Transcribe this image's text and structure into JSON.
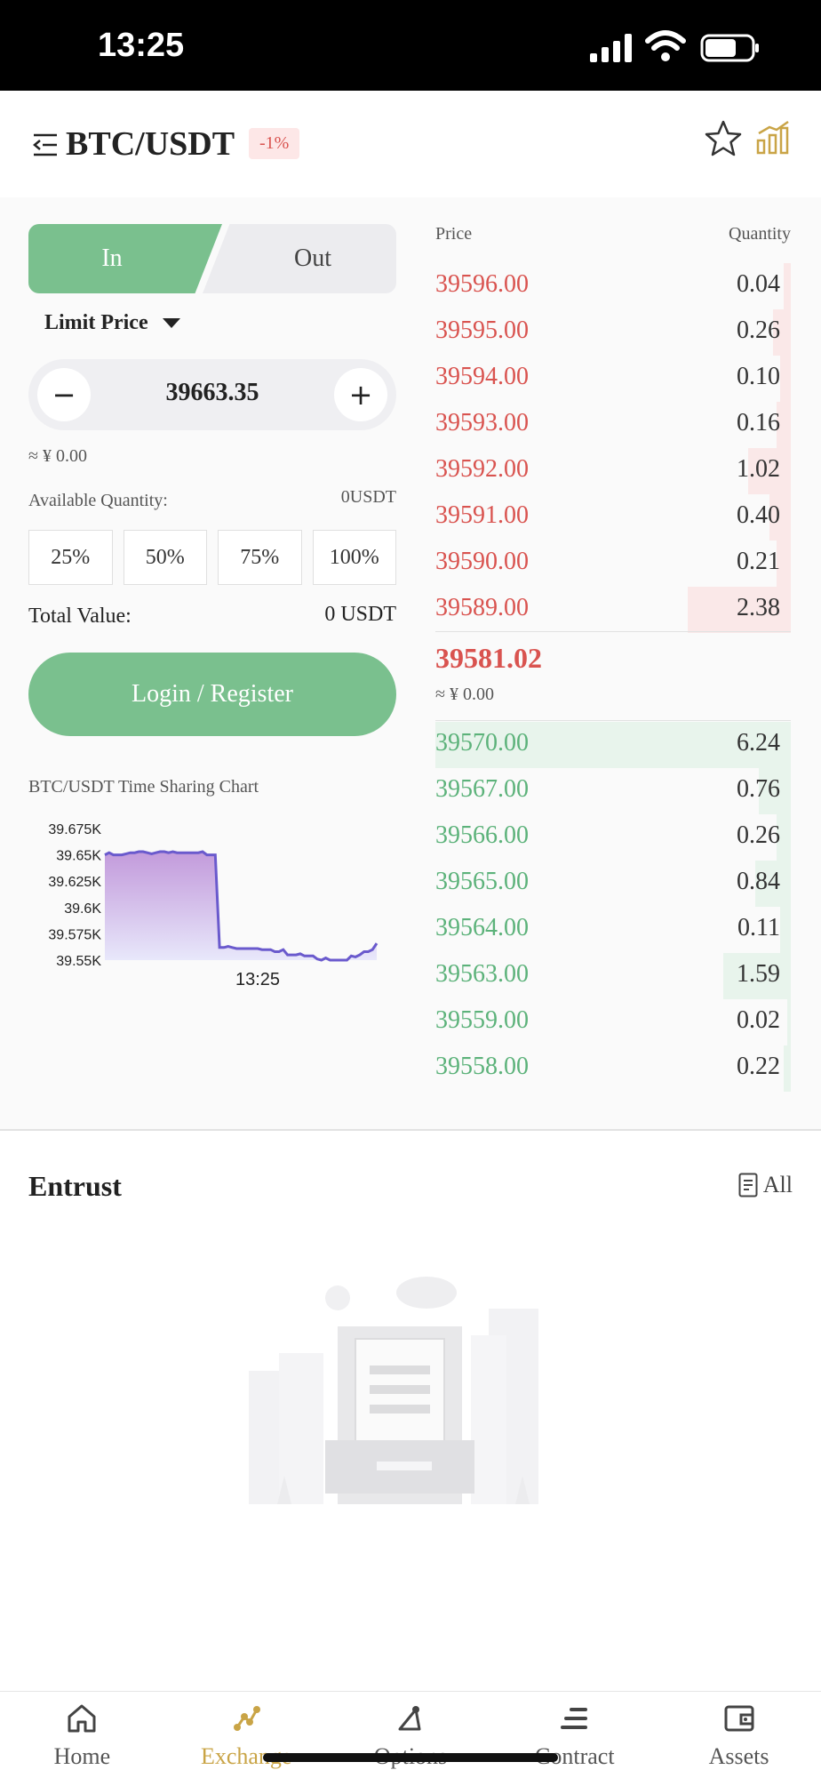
{
  "status_bar": {
    "time": "13:25"
  },
  "header": {
    "pair": "BTC/USDT",
    "change": "-1%"
  },
  "trade": {
    "side_in": "In",
    "side_out": "Out",
    "price_type": "Limit Price",
    "price_value": "39663.35",
    "minus": "−",
    "plus": "+",
    "approx_cny": "≈ ¥ 0.00",
    "available_label": "Available Quantity:",
    "available_value": "0USDT",
    "percents": [
      "25%",
      "50%",
      "75%",
      "100%"
    ],
    "total_label": "Total Value:",
    "total_value": "0 USDT",
    "login_label": "Login / Register"
  },
  "chart_data": {
    "type": "area",
    "title": "BTC/USDT Time Sharing Chart",
    "y_ticks": [
      "39.675K",
      "39.65K",
      "39.625K",
      "39.6K",
      "39.575K",
      "39.55K"
    ],
    "ylim": [
      39550,
      39675
    ],
    "x_tick": "13:25",
    "values": [
      39650,
      39652,
      39650,
      39650,
      39650,
      39651,
      39652,
      39652,
      39653,
      39653,
      39652,
      39651,
      39652,
      39653,
      39653,
      39652,
      39653,
      39652,
      39652,
      39652,
      39652,
      39652,
      39652,
      39653,
      39650,
      39650,
      39650,
      39562,
      39562,
      39563,
      39562,
      39561,
      39561,
      39561,
      39561,
      39561,
      39561,
      39560,
      39560,
      39560,
      39558,
      39558,
      39560,
      39555,
      39555,
      39555,
      39556,
      39554,
      39554,
      39554,
      39551,
      39550,
      39552,
      39550,
      39550,
      39550,
      39550,
      39550,
      39554,
      39553,
      39555,
      39558,
      39558,
      39560,
      39566
    ],
    "line_color": "#6a5acd"
  },
  "order_book": {
    "price_header": "Price",
    "quantity_header": "Quantity",
    "asks": [
      {
        "price": "39596.00",
        "qty": "0.04",
        "depth": 0.02
      },
      {
        "price": "39595.00",
        "qty": "0.26",
        "depth": 0.05
      },
      {
        "price": "39594.00",
        "qty": "0.10",
        "depth": 0.03
      },
      {
        "price": "39593.00",
        "qty": "0.16",
        "depth": 0.04
      },
      {
        "price": "39592.00",
        "qty": "1.02",
        "depth": 0.12
      },
      {
        "price": "39591.00",
        "qty": "0.40",
        "depth": 0.06
      },
      {
        "price": "39590.00",
        "qty": "0.21",
        "depth": 0.04
      },
      {
        "price": "39589.00",
        "qty": "2.38",
        "depth": 0.29
      }
    ],
    "last_price": "39581.02",
    "last_cny": "≈ ¥ 0.00",
    "bids": [
      {
        "price": "39570.00",
        "qty": "6.24",
        "depth": 1.0
      },
      {
        "price": "39567.00",
        "qty": "0.76",
        "depth": 0.09
      },
      {
        "price": "39566.00",
        "qty": "0.26",
        "depth": 0.04
      },
      {
        "price": "39565.00",
        "qty": "0.84",
        "depth": 0.1
      },
      {
        "price": "39564.00",
        "qty": "0.11",
        "depth": 0.03
      },
      {
        "price": "39563.00",
        "qty": "1.59",
        "depth": 0.19
      },
      {
        "price": "39559.00",
        "qty": "0.02",
        "depth": 0.01
      },
      {
        "price": "39558.00",
        "qty": "0.22",
        "depth": 0.02
      }
    ]
  },
  "entrust": {
    "title": "Entrust",
    "all_label": "All"
  },
  "nav": {
    "items": [
      {
        "label": "Home",
        "icon": "home-icon"
      },
      {
        "label": "Exchange",
        "icon": "exchange-icon",
        "active": true
      },
      {
        "label": "Options",
        "icon": "options-icon"
      },
      {
        "label": "Contract",
        "icon": "contract-icon"
      },
      {
        "label": "Assets",
        "icon": "wallet-icon"
      }
    ]
  },
  "colors": {
    "green": "#7ac08e",
    "red": "#d9534f",
    "gold": "#c9a446"
  }
}
